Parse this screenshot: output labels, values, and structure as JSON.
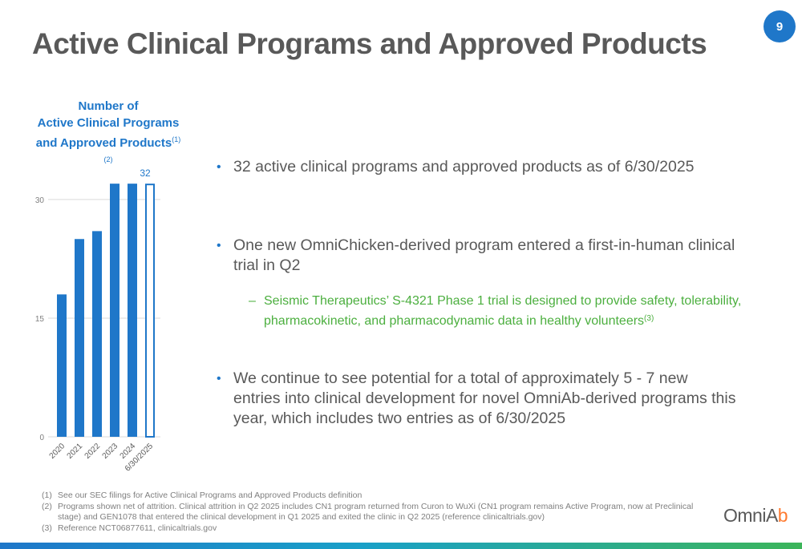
{
  "page": {
    "title": "Active Clinical Programs and Approved Products",
    "page_number": "9"
  },
  "chart_heading": {
    "line1": "Number of",
    "line2": "Active Clinical Programs",
    "line3": "and Approved Products",
    "superscript": "(1)(2)"
  },
  "chart_data": {
    "type": "bar",
    "categories": [
      "2020",
      "2021",
      "2022",
      "2023",
      "2024",
      "6/30/2025"
    ],
    "values": [
      18,
      25,
      26,
      32,
      32,
      32
    ],
    "highlight_last": true,
    "last_value_label": "32",
    "ylim": [
      0,
      32
    ],
    "yticks": [
      0,
      15,
      30
    ],
    "grid": true,
    "colors": {
      "bar": "#1f77c9",
      "grid": "#d9d9d9",
      "axis_text": "#7f7f7f"
    }
  },
  "bullets": [
    {
      "text": "32 active clinical programs and approved products as of 6/30/2025"
    },
    {
      "text": "One new OmniChicken-derived program entered a first-in-human clinical trial in Q2"
    },
    {
      "text": "We continue to see potential for a total of approximately 5 - 7 new entries into clinical development for novel OmniAb-derived programs this year, which includes two entries as of 6/30/2025"
    }
  ],
  "sub_bullet": {
    "dash": "–",
    "text": "Seismic Therapeutics’ S-4321 Phase 1 trial is designed to provide safety, tolerability, pharmacokinetic, and pharmacodynamic data in healthy volunteers",
    "superscript": "(3)"
  },
  "footnotes": [
    {
      "num": "(1)",
      "text": "See our SEC filings for Active Clinical Programs and Approved Products definition"
    },
    {
      "num": "(2)",
      "text": "Programs shown net of attrition. Clinical attrition in Q2 2025 includes CN1 program returned from Curon to WuXi (CN1 program remains Active Program, now at Preclinical stage) and GEN1078 that entered the clinical development in Q1 2025 and exited the clinic in Q2 2025 (reference clinicaltrials.gov)"
    },
    {
      "num": "(3)",
      "text": "Reference NCT06877611, clinicaltrials.gov"
    }
  ],
  "logo": {
    "main": "OmniA",
    "accent": "b"
  },
  "colors": {
    "brand_blue": "#1f77c9",
    "accent_green": "#4caf3f",
    "logo_orange": "#ff7a2f"
  }
}
